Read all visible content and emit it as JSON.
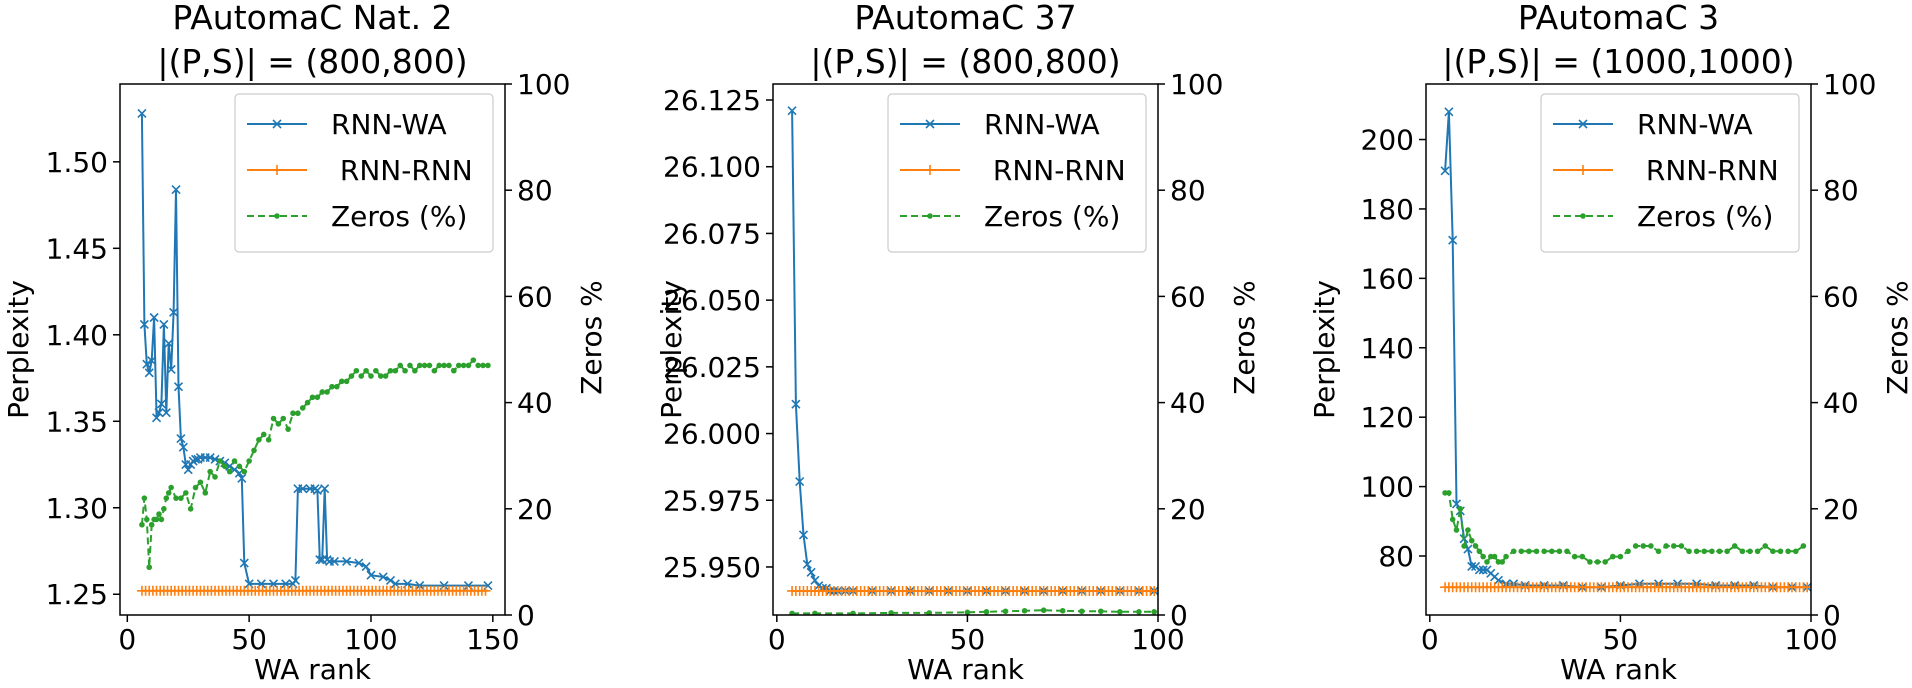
{
  "chart_data": [
    {
      "type": "line",
      "title": "PAutomaC Nat. 2",
      "subtitle": "|(P,S)| = (800,800)",
      "xlabel": "WA rank",
      "ylabel": "Perplexity",
      "y2label": "Zeros %",
      "xlim": [
        -3,
        155
      ],
      "ylim": [
        1.238,
        1.545
      ],
      "y2lim": [
        0,
        100
      ],
      "xticks": [
        0,
        50,
        100,
        150
      ],
      "yticks": [
        1.25,
        1.3,
        1.35,
        1.4,
        1.45,
        1.5
      ],
      "ytick_labels": [
        "1.25",
        "1.30",
        "1.35",
        "1.40",
        "1.45",
        "1.50"
      ],
      "y2ticks": [
        0,
        20,
        40,
        60,
        80,
        100
      ],
      "legend_position": "top-right",
      "grid": false,
      "series": [
        {
          "name": "RNN-WA",
          "axis": "left",
          "color": "#1f77b4",
          "marker": "x",
          "dash": "solid",
          "x": [
            6,
            7,
            8,
            9,
            10,
            11,
            12,
            13,
            14,
            15,
            16,
            17,
            18,
            19,
            20,
            21,
            22,
            23,
            24,
            25,
            26,
            27,
            28,
            29,
            30,
            32,
            34,
            36,
            38,
            40,
            42,
            44,
            46,
            47,
            48,
            50,
            55,
            60,
            65,
            68,
            69,
            70,
            72,
            75,
            77,
            78,
            79,
            80,
            81,
            82,
            83,
            85,
            90,
            95,
            98,
            100,
            105,
            108,
            110,
            115,
            120,
            130,
            140,
            148
          ],
          "y": [
            1.528,
            1.406,
            1.383,
            1.378,
            1.385,
            1.41,
            1.352,
            1.355,
            1.36,
            1.406,
            1.355,
            1.395,
            1.38,
            1.413,
            1.484,
            1.37,
            1.34,
            1.335,
            1.325,
            1.322,
            1.325,
            1.327,
            1.328,
            1.328,
            1.329,
            1.329,
            1.329,
            1.328,
            1.327,
            1.326,
            1.324,
            1.322,
            1.32,
            1.317,
            1.268,
            1.256,
            1.256,
            1.256,
            1.256,
            1.256,
            1.258,
            1.311,
            1.311,
            1.311,
            1.311,
            1.31,
            1.27,
            1.27,
            1.311,
            1.27,
            1.269,
            1.269,
            1.269,
            1.268,
            1.266,
            1.261,
            1.26,
            1.258,
            1.256,
            1.256,
            1.255,
            1.255,
            1.255,
            1.255
          ]
        },
        {
          "name": " RNN-RNN",
          "axis": "left",
          "color": "#ff7f0e",
          "marker": "+",
          "dash": "solid",
          "x": [
            6,
            148
          ],
          "y": [
            1.252,
            1.252
          ],
          "marker_step": 1.5
        },
        {
          "name": "Zeros (%)",
          "axis": "right",
          "color": "#2ca02c",
          "marker": "dot",
          "dash": "dashed",
          "x": [
            6,
            7,
            8,
            9,
            10,
            11,
            12,
            13,
            14,
            15,
            16,
            17,
            18,
            20,
            22,
            24,
            26,
            28,
            30,
            32,
            34,
            36,
            38,
            40,
            42,
            44,
            46,
            48,
            50,
            52,
            54,
            56,
            58,
            60,
            62,
            64,
            66,
            68,
            70,
            72,
            74,
            76,
            78,
            80,
            82,
            84,
            86,
            88,
            90,
            92,
            94,
            96,
            98,
            100,
            102,
            104,
            106,
            108,
            110,
            112,
            114,
            116,
            118,
            120,
            122,
            124,
            126,
            128,
            130,
            132,
            134,
            136,
            138,
            140,
            142,
            144,
            146,
            148
          ],
          "y": [
            17,
            22,
            18,
            9,
            17,
            18,
            18,
            19,
            18,
            20,
            22,
            23,
            24,
            22,
            22,
            23,
            20,
            24,
            25,
            23,
            27,
            26,
            29,
            28,
            27,
            29,
            28,
            27,
            29,
            31,
            33,
            34,
            33,
            37,
            36,
            37,
            35,
            38,
            38,
            39,
            40,
            41,
            41,
            42,
            42,
            43,
            43,
            44,
            44,
            45,
            46,
            45,
            46,
            45,
            46,
            45,
            45,
            46,
            46,
            47,
            46,
            47,
            46,
            47,
            47,
            47,
            46,
            47,
            47,
            47,
            46,
            47,
            47,
            47,
            48,
            47,
            47,
            47
          ]
        }
      ]
    },
    {
      "type": "line",
      "title": "PAutomaC 37",
      "subtitle": "|(P,S)| = (800,800)",
      "xlabel": "WA rank",
      "ylabel": "Perplexity",
      "y2label": "Zeros %",
      "xlim": [
        -1,
        100
      ],
      "ylim": [
        25.932,
        26.131
      ],
      "y2lim": [
        0,
        100
      ],
      "xticks": [
        0,
        50,
        100
      ],
      "yticks": [
        25.95,
        25.975,
        26.0,
        26.025,
        26.05,
        26.075,
        26.1,
        26.125
      ],
      "ytick_labels": [
        "25.950",
        "25.975",
        "26.000",
        "26.025",
        "26.050",
        "26.075",
        "26.100",
        "26.125"
      ],
      "y2ticks": [
        0,
        20,
        40,
        60,
        80,
        100
      ],
      "legend_position": "top-right",
      "grid": false,
      "series": [
        {
          "name": "RNN-WA",
          "axis": "left",
          "color": "#1f77b4",
          "marker": "x",
          "dash": "solid",
          "x": [
            4,
            5,
            6,
            7,
            8,
            9,
            10,
            11,
            12,
            13,
            14,
            15,
            16,
            18,
            20,
            25,
            30,
            35,
            40,
            45,
            50,
            55,
            60,
            65,
            70,
            75,
            80,
            85,
            90,
            95,
            99
          ],
          "y": [
            26.121,
            26.011,
            25.982,
            25.962,
            25.951,
            25.948,
            25.945,
            25.943,
            25.942,
            25.942,
            25.941,
            25.941,
            25.941,
            25.941,
            25.941,
            25.941,
            25.941,
            25.941,
            25.941,
            25.941,
            25.941,
            25.941,
            25.941,
            25.941,
            25.941,
            25.941,
            25.941,
            25.941,
            25.941,
            25.941,
            25.941
          ]
        },
        {
          "name": " RNN-RNN",
          "axis": "left",
          "color": "#ff7f0e",
          "marker": "+",
          "dash": "solid",
          "x": [
            4,
            99
          ],
          "y": [
            25.941,
            25.941
          ],
          "marker_step": 1
        },
        {
          "name": "Zeros (%)",
          "axis": "right",
          "color": "#2ca02c",
          "marker": "dot",
          "dash": "dashed",
          "x": [
            4,
            10,
            20,
            30,
            40,
            50,
            55,
            60,
            65,
            70,
            75,
            80,
            85,
            90,
            95,
            99
          ],
          "y": [
            0.3,
            0.3,
            0.3,
            0.4,
            0.4,
            0.5,
            0.6,
            0.7,
            0.8,
            0.9,
            0.8,
            0.7,
            0.7,
            0.6,
            0.6,
            0.6
          ]
        }
      ]
    },
    {
      "type": "line",
      "title": "PAutomaC 3",
      "subtitle": "|(P,S)| = (1000,1000)",
      "xlabel": "WA rank",
      "ylabel": "Perplexity",
      "y2label": "Zeros %",
      "xlim": [
        -1,
        100
      ],
      "ylim": [
        63,
        216
      ],
      "y2lim": [
        0,
        100
      ],
      "xticks": [
        0,
        50,
        100
      ],
      "yticks": [
        80,
        100,
        120,
        140,
        160,
        180,
        200
      ],
      "ytick_labels": [
        "80",
        "100",
        "120",
        "140",
        "160",
        "180",
        "200"
      ],
      "y2ticks": [
        0,
        20,
        40,
        60,
        80,
        100
      ],
      "legend_position": "top-right",
      "grid": false,
      "series": [
        {
          "name": "RNN-WA",
          "axis": "left",
          "color": "#1f77b4",
          "marker": "x",
          "dash": "solid",
          "x": [
            4,
            5,
            6,
            7,
            8,
            9,
            10,
            11,
            12,
            13,
            14,
            15,
            16,
            17,
            18,
            20,
            22,
            25,
            30,
            35,
            40,
            45,
            50,
            55,
            60,
            65,
            70,
            75,
            80,
            85,
            90,
            95,
            99
          ],
          "y": [
            191,
            208,
            171,
            95,
            93,
            85,
            82,
            77,
            77,
            76,
            76,
            76,
            75,
            74,
            73,
            72,
            72,
            71.5,
            71.5,
            71.5,
            71,
            71,
            71.5,
            72,
            72,
            72,
            72,
            71.5,
            71.5,
            71.5,
            71,
            71,
            71
          ]
        },
        {
          "name": " RNN-RNN",
          "axis": "left",
          "color": "#ff7f0e",
          "marker": "+",
          "dash": "solid",
          "x": [
            4,
            99
          ],
          "y": [
            71,
            71
          ],
          "marker_step": 1
        },
        {
          "name": "Zeros (%)",
          "axis": "right",
          "color": "#2ca02c",
          "marker": "dot",
          "dash": "dashed",
          "x": [
            4,
            5,
            6,
            7,
            8,
            9,
            10,
            11,
            12,
            13,
            14,
            15,
            16,
            17,
            18,
            19,
            20,
            22,
            24,
            26,
            28,
            30,
            32,
            34,
            36,
            38,
            40,
            42,
            44,
            46,
            48,
            50,
            52,
            54,
            56,
            58,
            60,
            62,
            64,
            66,
            68,
            70,
            72,
            74,
            76,
            78,
            80,
            82,
            84,
            86,
            88,
            90,
            92,
            94,
            96,
            98
          ],
          "y": [
            23,
            23,
            18,
            16,
            20,
            13,
            16,
            14,
            13,
            12,
            11,
            10,
            11,
            11,
            10,
            10,
            11,
            12,
            12,
            12,
            12,
            12,
            12,
            12,
            12,
            11,
            11,
            10,
            10,
            10,
            11,
            11,
            12,
            13,
            13,
            13,
            12,
            13,
            13,
            13,
            12,
            12,
            12,
            12,
            12,
            12,
            13,
            12,
            12,
            12,
            13,
            12,
            12,
            12,
            12,
            13
          ]
        }
      ]
    }
  ]
}
